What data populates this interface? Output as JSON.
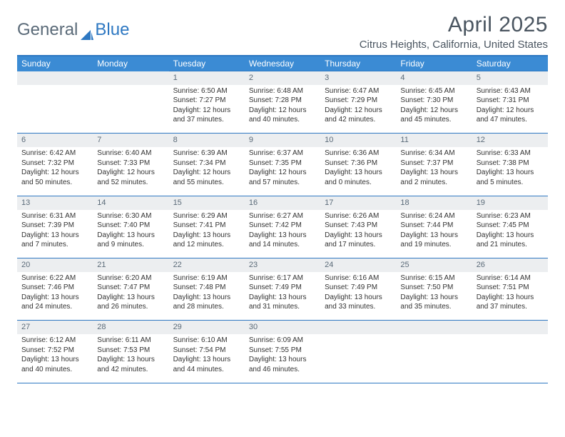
{
  "brand": {
    "part1": "General",
    "part2": "Blue"
  },
  "title": "April 2025",
  "location": "Citrus Heights, California, United States",
  "colors": {
    "header_bg": "#3b8bd4",
    "border": "#2e78c2",
    "daynum_bg": "#eceef0",
    "text": "#333333",
    "muted": "#5a6a78"
  },
  "day_headers": [
    "Sunday",
    "Monday",
    "Tuesday",
    "Wednesday",
    "Thursday",
    "Friday",
    "Saturday"
  ],
  "weeks": [
    [
      null,
      null,
      {
        "n": "1",
        "sr": "Sunrise: 6:50 AM",
        "ss": "Sunset: 7:27 PM",
        "d1": "Daylight: 12 hours",
        "d2": "and 37 minutes."
      },
      {
        "n": "2",
        "sr": "Sunrise: 6:48 AM",
        "ss": "Sunset: 7:28 PM",
        "d1": "Daylight: 12 hours",
        "d2": "and 40 minutes."
      },
      {
        "n": "3",
        "sr": "Sunrise: 6:47 AM",
        "ss": "Sunset: 7:29 PM",
        "d1": "Daylight: 12 hours",
        "d2": "and 42 minutes."
      },
      {
        "n": "4",
        "sr": "Sunrise: 6:45 AM",
        "ss": "Sunset: 7:30 PM",
        "d1": "Daylight: 12 hours",
        "d2": "and 45 minutes."
      },
      {
        "n": "5",
        "sr": "Sunrise: 6:43 AM",
        "ss": "Sunset: 7:31 PM",
        "d1": "Daylight: 12 hours",
        "d2": "and 47 minutes."
      }
    ],
    [
      {
        "n": "6",
        "sr": "Sunrise: 6:42 AM",
        "ss": "Sunset: 7:32 PM",
        "d1": "Daylight: 12 hours",
        "d2": "and 50 minutes."
      },
      {
        "n": "7",
        "sr": "Sunrise: 6:40 AM",
        "ss": "Sunset: 7:33 PM",
        "d1": "Daylight: 12 hours",
        "d2": "and 52 minutes."
      },
      {
        "n": "8",
        "sr": "Sunrise: 6:39 AM",
        "ss": "Sunset: 7:34 PM",
        "d1": "Daylight: 12 hours",
        "d2": "and 55 minutes."
      },
      {
        "n": "9",
        "sr": "Sunrise: 6:37 AM",
        "ss": "Sunset: 7:35 PM",
        "d1": "Daylight: 12 hours",
        "d2": "and 57 minutes."
      },
      {
        "n": "10",
        "sr": "Sunrise: 6:36 AM",
        "ss": "Sunset: 7:36 PM",
        "d1": "Daylight: 13 hours",
        "d2": "and 0 minutes."
      },
      {
        "n": "11",
        "sr": "Sunrise: 6:34 AM",
        "ss": "Sunset: 7:37 PM",
        "d1": "Daylight: 13 hours",
        "d2": "and 2 minutes."
      },
      {
        "n": "12",
        "sr": "Sunrise: 6:33 AM",
        "ss": "Sunset: 7:38 PM",
        "d1": "Daylight: 13 hours",
        "d2": "and 5 minutes."
      }
    ],
    [
      {
        "n": "13",
        "sr": "Sunrise: 6:31 AM",
        "ss": "Sunset: 7:39 PM",
        "d1": "Daylight: 13 hours",
        "d2": "and 7 minutes."
      },
      {
        "n": "14",
        "sr": "Sunrise: 6:30 AM",
        "ss": "Sunset: 7:40 PM",
        "d1": "Daylight: 13 hours",
        "d2": "and 9 minutes."
      },
      {
        "n": "15",
        "sr": "Sunrise: 6:29 AM",
        "ss": "Sunset: 7:41 PM",
        "d1": "Daylight: 13 hours",
        "d2": "and 12 minutes."
      },
      {
        "n": "16",
        "sr": "Sunrise: 6:27 AM",
        "ss": "Sunset: 7:42 PM",
        "d1": "Daylight: 13 hours",
        "d2": "and 14 minutes."
      },
      {
        "n": "17",
        "sr": "Sunrise: 6:26 AM",
        "ss": "Sunset: 7:43 PM",
        "d1": "Daylight: 13 hours",
        "d2": "and 17 minutes."
      },
      {
        "n": "18",
        "sr": "Sunrise: 6:24 AM",
        "ss": "Sunset: 7:44 PM",
        "d1": "Daylight: 13 hours",
        "d2": "and 19 minutes."
      },
      {
        "n": "19",
        "sr": "Sunrise: 6:23 AM",
        "ss": "Sunset: 7:45 PM",
        "d1": "Daylight: 13 hours",
        "d2": "and 21 minutes."
      }
    ],
    [
      {
        "n": "20",
        "sr": "Sunrise: 6:22 AM",
        "ss": "Sunset: 7:46 PM",
        "d1": "Daylight: 13 hours",
        "d2": "and 24 minutes."
      },
      {
        "n": "21",
        "sr": "Sunrise: 6:20 AM",
        "ss": "Sunset: 7:47 PM",
        "d1": "Daylight: 13 hours",
        "d2": "and 26 minutes."
      },
      {
        "n": "22",
        "sr": "Sunrise: 6:19 AM",
        "ss": "Sunset: 7:48 PM",
        "d1": "Daylight: 13 hours",
        "d2": "and 28 minutes."
      },
      {
        "n": "23",
        "sr": "Sunrise: 6:17 AM",
        "ss": "Sunset: 7:49 PM",
        "d1": "Daylight: 13 hours",
        "d2": "and 31 minutes."
      },
      {
        "n": "24",
        "sr": "Sunrise: 6:16 AM",
        "ss": "Sunset: 7:49 PM",
        "d1": "Daylight: 13 hours",
        "d2": "and 33 minutes."
      },
      {
        "n": "25",
        "sr": "Sunrise: 6:15 AM",
        "ss": "Sunset: 7:50 PM",
        "d1": "Daylight: 13 hours",
        "d2": "and 35 minutes."
      },
      {
        "n": "26",
        "sr": "Sunrise: 6:14 AM",
        "ss": "Sunset: 7:51 PM",
        "d1": "Daylight: 13 hours",
        "d2": "and 37 minutes."
      }
    ],
    [
      {
        "n": "27",
        "sr": "Sunrise: 6:12 AM",
        "ss": "Sunset: 7:52 PM",
        "d1": "Daylight: 13 hours",
        "d2": "and 40 minutes."
      },
      {
        "n": "28",
        "sr": "Sunrise: 6:11 AM",
        "ss": "Sunset: 7:53 PM",
        "d1": "Daylight: 13 hours",
        "d2": "and 42 minutes."
      },
      {
        "n": "29",
        "sr": "Sunrise: 6:10 AM",
        "ss": "Sunset: 7:54 PM",
        "d1": "Daylight: 13 hours",
        "d2": "and 44 minutes."
      },
      {
        "n": "30",
        "sr": "Sunrise: 6:09 AM",
        "ss": "Sunset: 7:55 PM",
        "d1": "Daylight: 13 hours",
        "d2": "and 46 minutes."
      },
      null,
      null,
      null
    ]
  ]
}
